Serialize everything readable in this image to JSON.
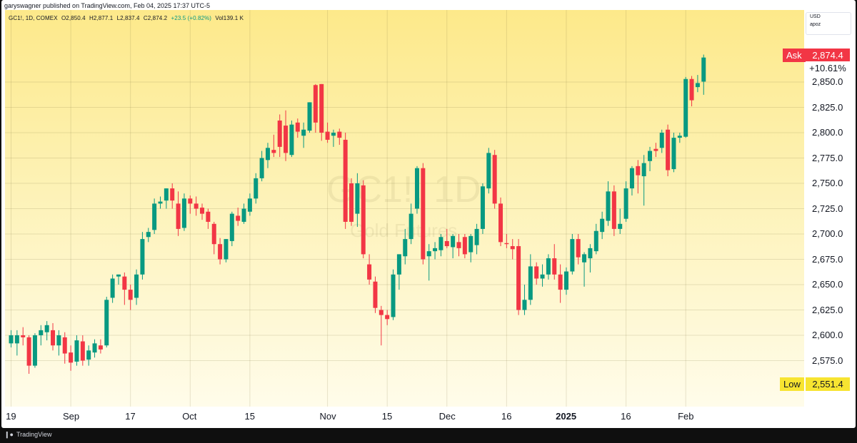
{
  "publisher_line": "garyswagner published on TradingView.com, Feb 04, 2025 17:37 UTC-5",
  "legend": {
    "symbol": "GC1!, 1D, COMEX",
    "open": "O2,850.4",
    "high": "H2,877.1",
    "low": "L2,837.4",
    "close": "C2,874.2",
    "change": "+23.5 (+0.82%)",
    "volume": "Vol139.1 K"
  },
  "watermark": {
    "symbol": "GC1!, 1D",
    "description": "Gold Futures"
  },
  "currency_box": {
    "currency": "USD",
    "unit": "apoz"
  },
  "tags": {
    "ask_name": "Ask",
    "ask_value": "2,874.4",
    "change_pct": "+10.61%",
    "low_name": "Low",
    "low_value": "2,551.4"
  },
  "colors": {
    "up": "#089981",
    "down": "#f23645",
    "ask": "#f23645",
    "low": "#f7e431",
    "background_top": "#fde98a",
    "background_bottom": "#fffcea"
  },
  "footer": {
    "brand": "TradingView",
    "logo": "tradingview-logo-icon"
  },
  "chart_data": {
    "type": "candlestick",
    "title": "",
    "xlabel": "",
    "ylabel": "",
    "grid": true,
    "ylim": [
      2550,
      2880
    ],
    "y_ticks": [
      "2,575.0",
      "2,600.0",
      "2,625.0",
      "2,650.0",
      "2,675.0",
      "2,700.0",
      "2,725.0",
      "2,750.0",
      "2,775.0",
      "2,800.0",
      "2,825.0",
      "2,850.0"
    ],
    "y_tick_values": [
      2575,
      2600,
      2625,
      2650,
      2675,
      2700,
      2725,
      2750,
      2775,
      2800,
      2825,
      2850
    ],
    "x_ticks": [
      {
        "label": "19",
        "index": 0,
        "bold": false
      },
      {
        "label": "Sep",
        "index": 10,
        "bold": false
      },
      {
        "label": "17",
        "index": 20,
        "bold": false
      },
      {
        "label": "Oct",
        "index": 30,
        "bold": false
      },
      {
        "label": "15",
        "index": 40,
        "bold": false
      },
      {
        "label": "Nov",
        "index": 53,
        "bold": false
      },
      {
        "label": "15",
        "index": 63,
        "bold": false
      },
      {
        "label": "Dec",
        "index": 73,
        "bold": false
      },
      {
        "label": "16",
        "index": 83,
        "bold": false
      },
      {
        "label": "2025",
        "index": 93,
        "bold": true
      },
      {
        "label": "16",
        "index": 103,
        "bold": false
      },
      {
        "label": "Feb",
        "index": 113,
        "bold": false
      }
    ],
    "candles": [
      {
        "o": 2592,
        "h": 2605,
        "l": 2588,
        "c": 2600
      },
      {
        "o": 2592,
        "h": 2605,
        "l": 2580,
        "c": 2600
      },
      {
        "o": 2600,
        "h": 2608,
        "l": 2590,
        "c": 2598
      },
      {
        "o": 2598,
        "h": 2600,
        "l": 2562,
        "c": 2570
      },
      {
        "o": 2570,
        "h": 2602,
        "l": 2568,
        "c": 2600
      },
      {
        "o": 2600,
        "h": 2610,
        "l": 2590,
        "c": 2605
      },
      {
        "o": 2603,
        "h": 2614,
        "l": 2595,
        "c": 2610
      },
      {
        "o": 2605,
        "h": 2612,
        "l": 2585,
        "c": 2590
      },
      {
        "o": 2590,
        "h": 2605,
        "l": 2580,
        "c": 2600
      },
      {
        "o": 2598,
        "h": 2603,
        "l": 2572,
        "c": 2582
      },
      {
        "o": 2583,
        "h": 2590,
        "l": 2565,
        "c": 2573
      },
      {
        "o": 2574,
        "h": 2600,
        "l": 2570,
        "c": 2595
      },
      {
        "o": 2594,
        "h": 2600,
        "l": 2570,
        "c": 2575
      },
      {
        "o": 2576,
        "h": 2590,
        "l": 2570,
        "c": 2585
      },
      {
        "o": 2583,
        "h": 2596,
        "l": 2578,
        "c": 2592
      },
      {
        "o": 2590,
        "h": 2596,
        "l": 2582,
        "c": 2586
      },
      {
        "o": 2590,
        "h": 2638,
        "l": 2588,
        "c": 2635
      },
      {
        "o": 2637,
        "h": 2660,
        "l": 2632,
        "c": 2656
      },
      {
        "o": 2658,
        "h": 2660,
        "l": 2650,
        "c": 2660
      },
      {
        "o": 2658,
        "h": 2662,
        "l": 2630,
        "c": 2645
      },
      {
        "o": 2645,
        "h": 2650,
        "l": 2625,
        "c": 2635
      },
      {
        "o": 2637,
        "h": 2665,
        "l": 2630,
        "c": 2660
      },
      {
        "o": 2660,
        "h": 2702,
        "l": 2655,
        "c": 2695
      },
      {
        "o": 2697,
        "h": 2706,
        "l": 2692,
        "c": 2702
      },
      {
        "o": 2704,
        "h": 2735,
        "l": 2700,
        "c": 2730
      },
      {
        "o": 2730,
        "h": 2737,
        "l": 2725,
        "c": 2732
      },
      {
        "o": 2733,
        "h": 2745,
        "l": 2725,
        "c": 2745
      },
      {
        "o": 2745,
        "h": 2750,
        "l": 2725,
        "c": 2733
      },
      {
        "o": 2730,
        "h": 2742,
        "l": 2698,
        "c": 2705
      },
      {
        "o": 2706,
        "h": 2740,
        "l": 2703,
        "c": 2735
      },
      {
        "o": 2735,
        "h": 2738,
        "l": 2720,
        "c": 2730
      },
      {
        "o": 2730,
        "h": 2737,
        "l": 2718,
        "c": 2725
      },
      {
        "o": 2726,
        "h": 2730,
        "l": 2714,
        "c": 2720
      },
      {
        "o": 2722,
        "h": 2725,
        "l": 2705,
        "c": 2712
      },
      {
        "o": 2710,
        "h": 2712,
        "l": 2680,
        "c": 2690
      },
      {
        "o": 2690,
        "h": 2696,
        "l": 2670,
        "c": 2675
      },
      {
        "o": 2675,
        "h": 2695,
        "l": 2672,
        "c": 2695
      },
      {
        "o": 2693,
        "h": 2722,
        "l": 2688,
        "c": 2720
      },
      {
        "o": 2718,
        "h": 2726,
        "l": 2708,
        "c": 2713
      },
      {
        "o": 2712,
        "h": 2730,
        "l": 2710,
        "c": 2725
      },
      {
        "o": 2722,
        "h": 2740,
        "l": 2718,
        "c": 2735
      },
      {
        "o": 2735,
        "h": 2760,
        "l": 2730,
        "c": 2755
      },
      {
        "o": 2755,
        "h": 2782,
        "l": 2752,
        "c": 2775
      },
      {
        "o": 2773,
        "h": 2790,
        "l": 2765,
        "c": 2785
      },
      {
        "o": 2783,
        "h": 2798,
        "l": 2776,
        "c": 2780
      },
      {
        "o": 2812,
        "h": 2818,
        "l": 2776,
        "c": 2786
      },
      {
        "o": 2807,
        "h": 2822,
        "l": 2772,
        "c": 2780
      },
      {
        "o": 2778,
        "h": 2812,
        "l": 2776,
        "c": 2808
      },
      {
        "o": 2810,
        "h": 2814,
        "l": 2795,
        "c": 2801
      },
      {
        "o": 2797,
        "h": 2810,
        "l": 2785,
        "c": 2803
      },
      {
        "o": 2802,
        "h": 2830,
        "l": 2800,
        "c": 2830
      },
      {
        "o": 2847,
        "h": 2848,
        "l": 2800,
        "c": 2810
      },
      {
        "o": 2848,
        "h": 2848,
        "l": 2792,
        "c": 2800
      },
      {
        "o": 2801,
        "h": 2810,
        "l": 2790,
        "c": 2793
      },
      {
        "o": 2797,
        "h": 2803,
        "l": 2786,
        "c": 2800
      },
      {
        "o": 2801,
        "h": 2804,
        "l": 2788,
        "c": 2795
      },
      {
        "o": 2793,
        "h": 2800,
        "l": 2705,
        "c": 2712
      },
      {
        "o": 2750,
        "h": 2755,
        "l": 2708,
        "c": 2712
      },
      {
        "o": 2720,
        "h": 2760,
        "l": 2707,
        "c": 2750
      },
      {
        "o": 2748,
        "h": 2753,
        "l": 2676,
        "c": 2680
      },
      {
        "o": 2670,
        "h": 2680,
        "l": 2650,
        "c": 2655
      },
      {
        "o": 2653,
        "h": 2658,
        "l": 2622,
        "c": 2627
      },
      {
        "o": 2625,
        "h": 2629,
        "l": 2590,
        "c": 2620
      },
      {
        "o": 2620,
        "h": 2625,
        "l": 2610,
        "c": 2616
      },
      {
        "o": 2618,
        "h": 2665,
        "l": 2615,
        "c": 2660
      },
      {
        "o": 2660,
        "h": 2680,
        "l": 2645,
        "c": 2680
      },
      {
        "o": 2678,
        "h": 2705,
        "l": 2670,
        "c": 2695
      },
      {
        "o": 2695,
        "h": 2730,
        "l": 2690,
        "c": 2720
      },
      {
        "o": 2725,
        "h": 2767,
        "l": 2720,
        "c": 2765
      },
      {
        "o": 2765,
        "h": 2770,
        "l": 2670,
        "c": 2675
      },
      {
        "o": 2678,
        "h": 2690,
        "l": 2654,
        "c": 2683
      },
      {
        "o": 2683,
        "h": 2692,
        "l": 2675,
        "c": 2686
      },
      {
        "o": 2684,
        "h": 2700,
        "l": 2678,
        "c": 2697
      },
      {
        "o": 2693,
        "h": 2705,
        "l": 2686,
        "c": 2688
      },
      {
        "o": 2687,
        "h": 2700,
        "l": 2676,
        "c": 2698
      },
      {
        "o": 2692,
        "h": 2700,
        "l": 2678,
        "c": 2686
      },
      {
        "o": 2697,
        "h": 2700,
        "l": 2676,
        "c": 2680
      },
      {
        "o": 2682,
        "h": 2700,
        "l": 2672,
        "c": 2698
      },
      {
        "o": 2689,
        "h": 2710,
        "l": 2680,
        "c": 2705
      },
      {
        "o": 2705,
        "h": 2750,
        "l": 2700,
        "c": 2747
      },
      {
        "o": 2745,
        "h": 2785,
        "l": 2740,
        "c": 2780
      },
      {
        "o": 2778,
        "h": 2783,
        "l": 2725,
        "c": 2730
      },
      {
        "o": 2730,
        "h": 2736,
        "l": 2688,
        "c": 2692
      },
      {
        "o": 2691,
        "h": 2700,
        "l": 2686,
        "c": 2690
      },
      {
        "o": 2688,
        "h": 2695,
        "l": 2675,
        "c": 2685
      },
      {
        "o": 2688,
        "h": 2695,
        "l": 2620,
        "c": 2625
      },
      {
        "o": 2625,
        "h": 2650,
        "l": 2620,
        "c": 2635
      },
      {
        "o": 2635,
        "h": 2680,
        "l": 2630,
        "c": 2668
      },
      {
        "o": 2668,
        "h": 2672,
        "l": 2650,
        "c": 2656
      },
      {
        "o": 2656,
        "h": 2670,
        "l": 2648,
        "c": 2660
      },
      {
        "o": 2660,
        "h": 2680,
        "l": 2655,
        "c": 2676
      },
      {
        "o": 2676,
        "h": 2690,
        "l": 2655,
        "c": 2660
      },
      {
        "o": 2660,
        "h": 2670,
        "l": 2632,
        "c": 2645
      },
      {
        "o": 2645,
        "h": 2667,
        "l": 2640,
        "c": 2663
      },
      {
        "o": 2663,
        "h": 2700,
        "l": 2660,
        "c": 2695
      },
      {
        "o": 2695,
        "h": 2700,
        "l": 2670,
        "c": 2677
      },
      {
        "o": 2672,
        "h": 2682,
        "l": 2648,
        "c": 2680
      },
      {
        "o": 2676,
        "h": 2690,
        "l": 2662,
        "c": 2686
      },
      {
        "o": 2683,
        "h": 2710,
        "l": 2680,
        "c": 2703
      },
      {
        "o": 2702,
        "h": 2722,
        "l": 2695,
        "c": 2715
      },
      {
        "o": 2713,
        "h": 2752,
        "l": 2708,
        "c": 2742
      },
      {
        "o": 2742,
        "h": 2748,
        "l": 2698,
        "c": 2705
      },
      {
        "o": 2705,
        "h": 2725,
        "l": 2700,
        "c": 2710
      },
      {
        "o": 2715,
        "h": 2752,
        "l": 2712,
        "c": 2745
      },
      {
        "o": 2745,
        "h": 2767,
        "l": 2738,
        "c": 2765
      },
      {
        "o": 2767,
        "h": 2773,
        "l": 2740,
        "c": 2758
      },
      {
        "o": 2757,
        "h": 2778,
        "l": 2728,
        "c": 2770
      },
      {
        "o": 2772,
        "h": 2786,
        "l": 2762,
        "c": 2782
      },
      {
        "o": 2784,
        "h": 2790,
        "l": 2776,
        "c": 2782
      },
      {
        "o": 2785,
        "h": 2803,
        "l": 2780,
        "c": 2800
      },
      {
        "o": 2803,
        "h": 2808,
        "l": 2757,
        "c": 2763
      },
      {
        "o": 2764,
        "h": 2800,
        "l": 2761,
        "c": 2795
      },
      {
        "o": 2795,
        "h": 2800,
        "l": 2790,
        "c": 2797
      },
      {
        "o": 2796,
        "h": 2855,
        "l": 2795,
        "c": 2853
      },
      {
        "o": 2853,
        "h": 2856,
        "l": 2826,
        "c": 2832
      },
      {
        "o": 2845,
        "h": 2857,
        "l": 2840,
        "c": 2849
      },
      {
        "o": 2850.4,
        "h": 2877.1,
        "l": 2837.4,
        "c": 2874.2
      }
    ]
  }
}
